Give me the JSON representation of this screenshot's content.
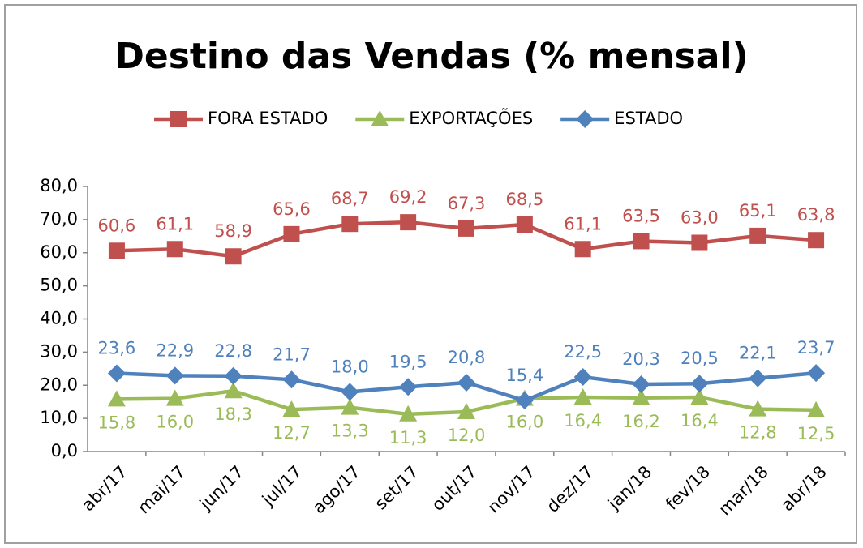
{
  "chart_data": {
    "type": "line",
    "title": "Destino das Vendas (% mensal)",
    "categories": [
      "abr/17",
      "mai/17",
      "jun/17",
      "jul/17",
      "ago/17",
      "set/17",
      "out/17",
      "nov/17",
      "dez/17",
      "jan/18",
      "fev/18",
      "mar/18",
      "abr/18"
    ],
    "series": [
      {
        "name": "FORA ESTADO",
        "color": "#c0504d",
        "marker": "square",
        "values": [
          60.6,
          61.1,
          58.9,
          65.6,
          68.7,
          69.2,
          67.3,
          68.5,
          61.1,
          63.5,
          63.0,
          65.1,
          63.8
        ],
        "value_labels": [
          "60,6",
          "61,1",
          "58,9",
          "65,6",
          "68,7",
          "69,2",
          "67,3",
          "68,5",
          "61,1",
          "63,5",
          "63,0",
          "65,1",
          "63,8"
        ]
      },
      {
        "name": "EXPORTAÇÕES",
        "color": "#9bbb59",
        "marker": "triangle",
        "values": [
          15.8,
          16.0,
          18.3,
          12.7,
          13.3,
          11.3,
          12.0,
          16.0,
          16.4,
          16.2,
          16.4,
          12.8,
          12.5
        ],
        "value_labels": [
          "15,8",
          "16,0",
          "18,3",
          "12,7",
          "13,3",
          "11,3",
          "12,0",
          "16,0",
          "16,4",
          "16,2",
          "16,4",
          "12,8",
          "12,5"
        ]
      },
      {
        "name": "ESTADO",
        "color": "#4f81bd",
        "marker": "diamond",
        "values": [
          23.6,
          22.9,
          22.8,
          21.7,
          18.0,
          19.5,
          20.8,
          15.4,
          22.5,
          20.3,
          20.5,
          22.1,
          23.7
        ],
        "value_labels": [
          "23,6",
          "22,9",
          "22,8",
          "21,7",
          "18,0",
          "19,5",
          "20,8",
          "15,4",
          "22,5",
          "20,3",
          "20,5",
          "22,1",
          "23,7"
        ]
      }
    ],
    "ylim": [
      0,
      80
    ],
    "yticks": [
      {
        "value": 0,
        "label": "0,0"
      },
      {
        "value": 10,
        "label": "10,0"
      },
      {
        "value": 20,
        "label": "20,0"
      },
      {
        "value": 30,
        "label": "30,0"
      },
      {
        "value": 40,
        "label": "40,0"
      },
      {
        "value": 50,
        "label": "50,0"
      },
      {
        "value": 60,
        "label": "60,0"
      },
      {
        "value": 70,
        "label": "70,0"
      },
      {
        "value": 80,
        "label": "80,0"
      }
    ],
    "legend": "top",
    "grid": false
  }
}
